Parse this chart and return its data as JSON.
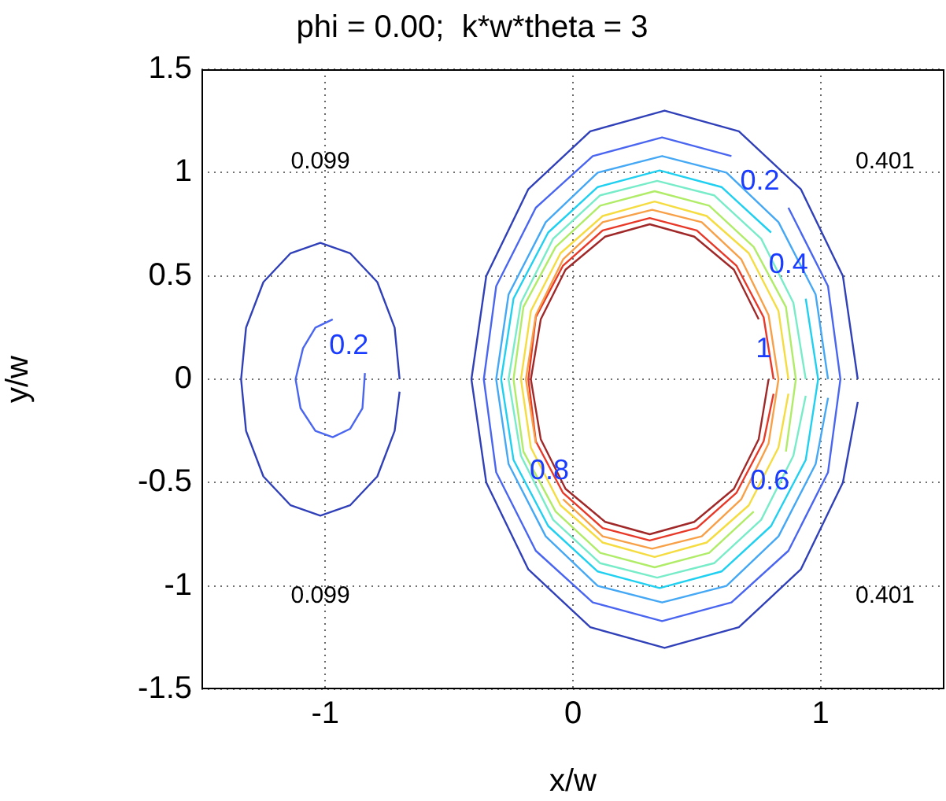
{
  "chart_data": {
    "type": "line",
    "title": "phi = 0.00;  k*w*theta = 3",
    "xlabel": "x/w",
    "ylabel": "y/w",
    "xlim": [
      -1.5,
      1.5
    ],
    "ylim": [
      -1.5,
      1.5
    ],
    "xticks": [
      -1,
      0,
      1
    ],
    "yticks": [
      -1.5,
      -1,
      -0.5,
      0,
      0.5,
      1,
      1.5
    ],
    "grid": true,
    "series": [
      {
        "color": "#3040b8",
        "x": [
          -0.7,
          -0.72,
          -0.79,
          -0.9,
          -1.02,
          -1.14,
          -1.25,
          -1.32,
          -1.34,
          -1.32,
          -1.25,
          -1.14,
          -1.02,
          -0.9,
          -0.79,
          -0.72,
          -0.7
        ],
        "values": [
          0,
          0.25,
          0.47,
          0.61,
          0.66,
          0.61,
          0.47,
          0.25,
          0,
          -0.25,
          -0.47,
          -0.61,
          -0.66,
          -0.61,
          -0.47,
          -0.25,
          -0.06
        ]
      },
      {
        "name": "0.2",
        "color": "#4a66f0",
        "x": [
          -0.97,
          -1.04,
          -1.09,
          -1.12,
          -1.1,
          -1.04,
          -0.97,
          -0.9,
          -0.85,
          -0.84
        ],
        "values": [
          0.29,
          0.25,
          0.15,
          0,
          -0.14,
          -0.25,
          -0.28,
          -0.24,
          -0.14,
          0.03
        ]
      },
      {
        "color": "#3040b8",
        "x": [
          1.15,
          1.09,
          0.92,
          0.67,
          0.37,
          0.07,
          -0.18,
          -0.35,
          -0.41,
          -0.35,
          -0.18,
          0.07,
          0.37,
          0.67,
          0.92,
          1.09,
          1.15
        ],
        "values": [
          0,
          0.5,
          0.92,
          1.2,
          1.3,
          1.2,
          0.92,
          0.5,
          0,
          -0.5,
          -0.92,
          -1.2,
          -1.3,
          -1.2,
          -0.92,
          -0.5,
          -0.11
        ]
      },
      {
        "name": "0.2",
        "color": "#4a66f0",
        "x": [
          0.64,
          0.36,
          0.08,
          -0.15,
          -0.31,
          -0.36,
          -0.31,
          -0.15,
          0.08,
          0.36,
          0.64,
          0.87,
          1.03,
          1.08,
          1.03,
          0.87
        ],
        "values": [
          1.08,
          1.17,
          1.08,
          0.83,
          0.45,
          0,
          -0.45,
          -0.83,
          -1.08,
          -1.17,
          -1.08,
          -0.83,
          -0.45,
          0,
          0.45,
          0.83
        ]
      },
      {
        "color": "#45a8f5",
        "x": [
          1.03,
          0.98,
          0.83,
          0.62,
          0.36,
          0.1,
          -0.11,
          -0.26,
          -0.31,
          -0.26,
          -0.11,
          0.1,
          0.36,
          0.62,
          0.83,
          0.98,
          1.03
        ],
        "values": [
          0,
          0.41,
          0.76,
          1.0,
          1.08,
          1.0,
          0.76,
          0.41,
          0,
          -0.41,
          -0.76,
          -1.0,
          -1.08,
          -1.0,
          -0.76,
          -0.41,
          -0.09
        ]
      },
      {
        "name": "0.4",
        "color": "#20d0f0",
        "x": [
          0.8,
          0.6,
          0.35,
          0.1,
          -0.1,
          -0.24,
          -0.29,
          -0.24,
          -0.1,
          0.1,
          0.35,
          0.6,
          0.8,
          0.94,
          0.99,
          0.94
        ],
        "values": [
          0.71,
          0.93,
          1.01,
          0.93,
          0.71,
          0.39,
          0,
          -0.39,
          -0.71,
          -0.93,
          -1.01,
          -0.93,
          -0.71,
          -0.39,
          0,
          0.39
        ]
      },
      {
        "color": "#78ecc8",
        "x": [
          0.94,
          0.89,
          0.76,
          0.57,
          0.34,
          0.11,
          -0.08,
          -0.21,
          -0.26,
          -0.21,
          -0.08,
          0.11,
          0.34,
          0.57,
          0.76,
          0.89,
          0.94
        ],
        "values": [
          0,
          0.37,
          0.68,
          0.89,
          0.96,
          0.89,
          0.68,
          0.37,
          0,
          -0.37,
          -0.68,
          -0.89,
          -0.96,
          -0.89,
          -0.68,
          -0.37,
          -0.08
        ]
      },
      {
        "name": "0.6",
        "color": "#b0ec68",
        "x": [
          0.86,
          0.9,
          0.86,
          0.73,
          0.55,
          0.33,
          0.11,
          -0.07,
          -0.2,
          -0.24,
          -0.2,
          -0.07,
          0.11,
          0.33,
          0.55,
          0.73
        ],
        "values": [
          -0.35,
          0,
          0.35,
          0.64,
          0.84,
          0.91,
          0.84,
          0.64,
          0.35,
          0,
          -0.35,
          -0.64,
          -0.84,
          -0.91,
          -0.84,
          -0.64
        ]
      },
      {
        "color": "#f5dc40",
        "x": [
          0.87,
          0.83,
          0.71,
          0.54,
          0.33,
          0.12,
          -0.05,
          -0.17,
          -0.21,
          -0.17,
          -0.05,
          0.12,
          0.33,
          0.54,
          0.71,
          0.83,
          0.87
        ],
        "values": [
          0,
          0.33,
          0.61,
          0.79,
          0.86,
          0.79,
          0.61,
          0.33,
          0,
          -0.33,
          -0.61,
          -0.79,
          -0.86,
          -0.79,
          -0.61,
          -0.33,
          -0.07
        ]
      },
      {
        "name": "0.8",
        "color": "#f8a048",
        "x": [
          -0.04,
          0.12,
          0.32,
          0.52,
          0.68,
          0.79,
          0.83,
          0.79,
          0.68,
          0.52,
          0.32,
          0.12,
          -0.04,
          -0.15,
          -0.19,
          -0.15
        ],
        "values": [
          -0.58,
          -0.76,
          -0.82,
          -0.76,
          -0.58,
          -0.31,
          0,
          0.31,
          0.58,
          0.76,
          0.82,
          0.76,
          0.58,
          0.31,
          0,
          -0.31
        ]
      },
      {
        "color": "#e83828",
        "x": [
          0.81,
          0.77,
          0.66,
          0.5,
          0.31,
          0.12,
          -0.04,
          -0.15,
          -0.18,
          -0.15,
          -0.04,
          0.12,
          0.31,
          0.5,
          0.66,
          0.77,
          0.81
        ],
        "values": [
          0,
          0.3,
          0.55,
          0.72,
          0.78,
          0.72,
          0.55,
          0.3,
          0,
          -0.3,
          -0.55,
          -0.72,
          -0.78,
          -0.72,
          -0.55,
          -0.3,
          -0.07
        ]
      },
      {
        "name": "1",
        "color": "#a02828",
        "x": [
          0.75,
          0.65,
          0.49,
          0.31,
          0.13,
          -0.03,
          -0.13,
          -0.17,
          -0.13,
          -0.03,
          0.13,
          0.31,
          0.49,
          0.65,
          0.75,
          0.79
        ],
        "values": [
          0.29,
          0.53,
          0.69,
          0.75,
          0.69,
          0.53,
          0.29,
          0,
          -0.29,
          -0.53,
          -0.69,
          -0.75,
          -0.69,
          -0.53,
          -0.29,
          0
        ]
      }
    ],
    "annotations": [
      "0.099",
      "0.401",
      "0.099",
      "0.401"
    ]
  }
}
